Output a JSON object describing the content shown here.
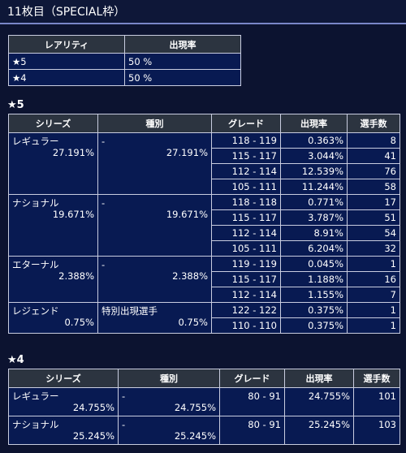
{
  "page_title": "11枚目（SPECIAL枠）",
  "rarity_table": {
    "headers": [
      "レアリティ",
      "出現率"
    ],
    "rows": [
      {
        "rarity": "★5",
        "rate": "50 %"
      },
      {
        "rarity": "★4",
        "rate": "50 %"
      }
    ]
  },
  "star5": {
    "heading": "★5",
    "headers": [
      "シリーズ",
      "種別",
      "グレード",
      "出現率",
      "選手数"
    ],
    "groups": [
      {
        "series": "レギュラー",
        "series_rate": "27.191%",
        "type": "-",
        "type_rate": "27.191%",
        "rows": [
          {
            "grade": "118 - 119",
            "rate": "0.363%",
            "count": "8"
          },
          {
            "grade": "115 - 117",
            "rate": "3.044%",
            "count": "41"
          },
          {
            "grade": "112 - 114",
            "rate": "12.539%",
            "count": "76"
          },
          {
            "grade": "105 - 111",
            "rate": "11.244%",
            "count": "58"
          }
        ]
      },
      {
        "series": "ナショナル",
        "series_rate": "19.671%",
        "type": "-",
        "type_rate": "19.671%",
        "rows": [
          {
            "grade": "118 - 118",
            "rate": "0.771%",
            "count": "17"
          },
          {
            "grade": "115 - 117",
            "rate": "3.787%",
            "count": "51"
          },
          {
            "grade": "112 - 114",
            "rate": "8.91%",
            "count": "54"
          },
          {
            "grade": "105 - 111",
            "rate": "6.204%",
            "count": "32"
          }
        ]
      },
      {
        "series": "エターナル",
        "series_rate": "2.388%",
        "type": "-",
        "type_rate": "2.388%",
        "rows": [
          {
            "grade": "119 - 119",
            "rate": "0.045%",
            "count": "1"
          },
          {
            "grade": "115 - 117",
            "rate": "1.188%",
            "count": "16"
          },
          {
            "grade": "112 - 114",
            "rate": "1.155%",
            "count": "7"
          }
        ]
      },
      {
        "series": "レジェンド",
        "series_rate": "0.75%",
        "type": "特別出現選手",
        "type_rate": "0.75%",
        "rows": [
          {
            "grade": "122 - 122",
            "rate": "0.375%",
            "count": "1"
          },
          {
            "grade": "110 - 110",
            "rate": "0.375%",
            "count": "1"
          }
        ]
      }
    ]
  },
  "star4": {
    "heading": "★4",
    "headers": [
      "シリーズ",
      "種別",
      "グレード",
      "出現率",
      "選手数"
    ],
    "groups": [
      {
        "series": "レギュラー",
        "series_rate": "24.755%",
        "type": "-",
        "type_rate": "24.755%",
        "rows": [
          {
            "grade": "80 - 91",
            "rate": "24.755%",
            "count": "101"
          }
        ]
      },
      {
        "series": "ナショナル",
        "series_rate": "25.245%",
        "type": "-",
        "type_rate": "25.245%",
        "rows": [
          {
            "grade": "80 - 91",
            "rate": "25.245%",
            "count": "103"
          }
        ]
      }
    ]
  }
}
